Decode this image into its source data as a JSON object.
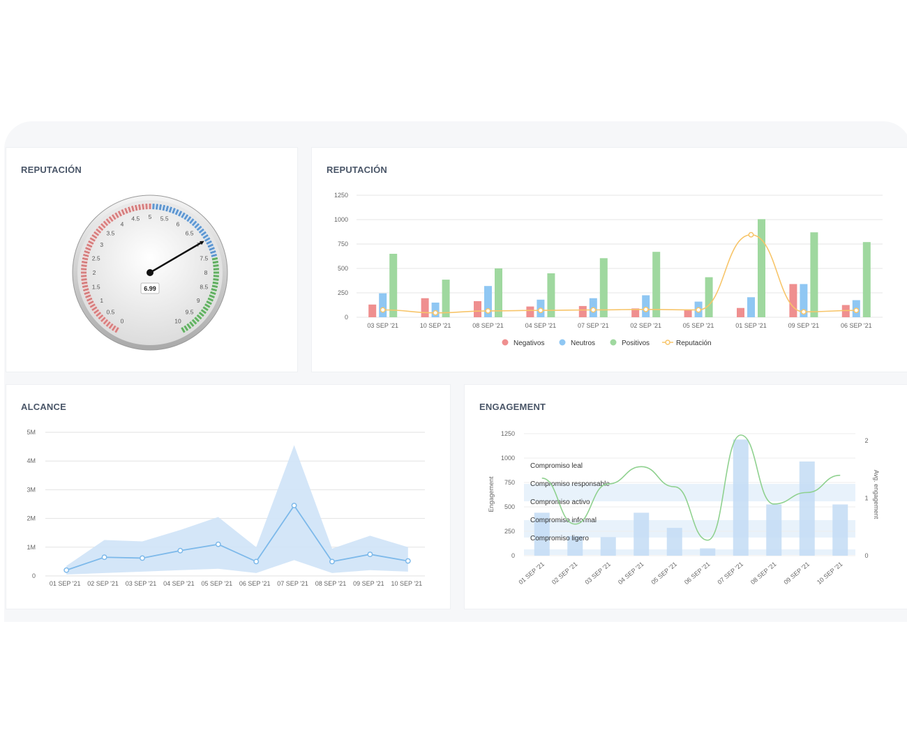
{
  "colors": {
    "negativos": "#ef8f8f",
    "neutros": "#8fc7f3",
    "positivos": "#9fd89f",
    "reputacion_line": "#f7c56a",
    "alcance_line": "#7db9ea",
    "alcance_band": "#cfe3f7",
    "engagement_bar": "#c3dcf4",
    "engagement_line": "#8fd18f",
    "band": "#e8f2fb"
  },
  "gauge": {
    "title": "REPUTACIÓN",
    "value": 6.99,
    "value_label": "6.99",
    "min": 0,
    "max": 10,
    "tick_labels": [
      "0",
      "0.5",
      "1",
      "1.5",
      "2",
      "2.5",
      "3",
      "3.5",
      "4",
      "4.5",
      "5",
      "5.5",
      "6",
      "6.5",
      "7",
      "7.5",
      "8",
      "8.5",
      "9",
      "9.5",
      "10"
    ]
  },
  "chart_data": [
    {
      "type": "bar",
      "title": "REPUTACIÓN",
      "categories": [
        "03 SEP '21",
        "10 SEP '21",
        "08 SEP '21",
        "04 SEP '21",
        "07 SEP '21",
        "02 SEP '21",
        "05 SEP '21",
        "01 SEP '21",
        "09 SEP '21",
        "06 SEP '21"
      ],
      "series": [
        {
          "name": "Negativos",
          "type": "bar",
          "values": [
            130,
            195,
            165,
            110,
            115,
            90,
            80,
            95,
            340,
            125
          ]
        },
        {
          "name": "Neutros",
          "type": "bar",
          "values": [
            245,
            150,
            320,
            180,
            195,
            225,
            160,
            205,
            340,
            175
          ]
        },
        {
          "name": "Positivos",
          "type": "bar",
          "values": [
            650,
            385,
            500,
            450,
            605,
            670,
            410,
            1005,
            870,
            770
          ]
        },
        {
          "name": "Reputación",
          "type": "line",
          "values": [
            75,
            45,
            65,
            70,
            75,
            80,
            75,
            845,
            55,
            70
          ]
        }
      ],
      "yticks": [
        "0",
        "250",
        "500",
        "750",
        "1000",
        "1250"
      ],
      "ylim": [
        0,
        1250
      ],
      "legend_position": "bottom"
    },
    {
      "type": "line",
      "title": "ALCANCE",
      "categories": [
        "01 SEP '21",
        "02 SEP '21",
        "03 SEP '21",
        "04 SEP '21",
        "05 SEP '21",
        "06 SEP '21",
        "07 SEP '21",
        "08 SEP '21",
        "09 SEP '21",
        "10 SEP '21"
      ],
      "values": [
        0.2,
        0.65,
        0.62,
        0.88,
        1.1,
        0.5,
        2.45,
        0.5,
        0.75,
        0.52
      ],
      "band_upper": [
        0.35,
        1.25,
        1.2,
        1.6,
        2.05,
        1.0,
        4.55,
        0.95,
        1.4,
        1.0
      ],
      "band_lower": [
        0.05,
        0.1,
        0.15,
        0.2,
        0.25,
        0.1,
        0.55,
        0.1,
        0.2,
        0.15
      ],
      "yticks": [
        "0",
        "1M",
        "2M",
        "3M",
        "4M",
        "5M"
      ],
      "ylim": [
        0,
        5
      ]
    },
    {
      "type": "bar",
      "title": "ENGAGEMENT",
      "categories": [
        "01 SEP '21",
        "02 SEP '21",
        "03 SEP '21",
        "04 SEP '21",
        "05 SEP '21",
        "06 SEP '21",
        "07 SEP '21",
        "08 SEP '21",
        "09 SEP '21",
        "10 SEP '21"
      ],
      "bars": [
        440,
        200,
        190,
        440,
        285,
        75,
        1190,
        525,
        965,
        525
      ],
      "line": [
        1.35,
        0.55,
        1.25,
        1.55,
        1.2,
        0.27,
        2.1,
        0.9,
        1.1,
        1.4
      ],
      "ylabel": "Engagement",
      "y2label": "Avg. engagement",
      "yticks": [
        "0",
        "250",
        "500",
        "750",
        "1000",
        "1250"
      ],
      "y2ticks": [
        "0",
        "1",
        "2"
      ],
      "ylim": [
        0,
        1250
      ],
      "y2lim": [
        0,
        2.1
      ],
      "bands": [
        {
          "label": "Compromiso leal"
        },
        {
          "label": "Compromiso responsable"
        },
        {
          "label": "Compromiso activo"
        },
        {
          "label": "Compromiso informal"
        },
        {
          "label": "Compromiso ligero"
        }
      ]
    }
  ]
}
